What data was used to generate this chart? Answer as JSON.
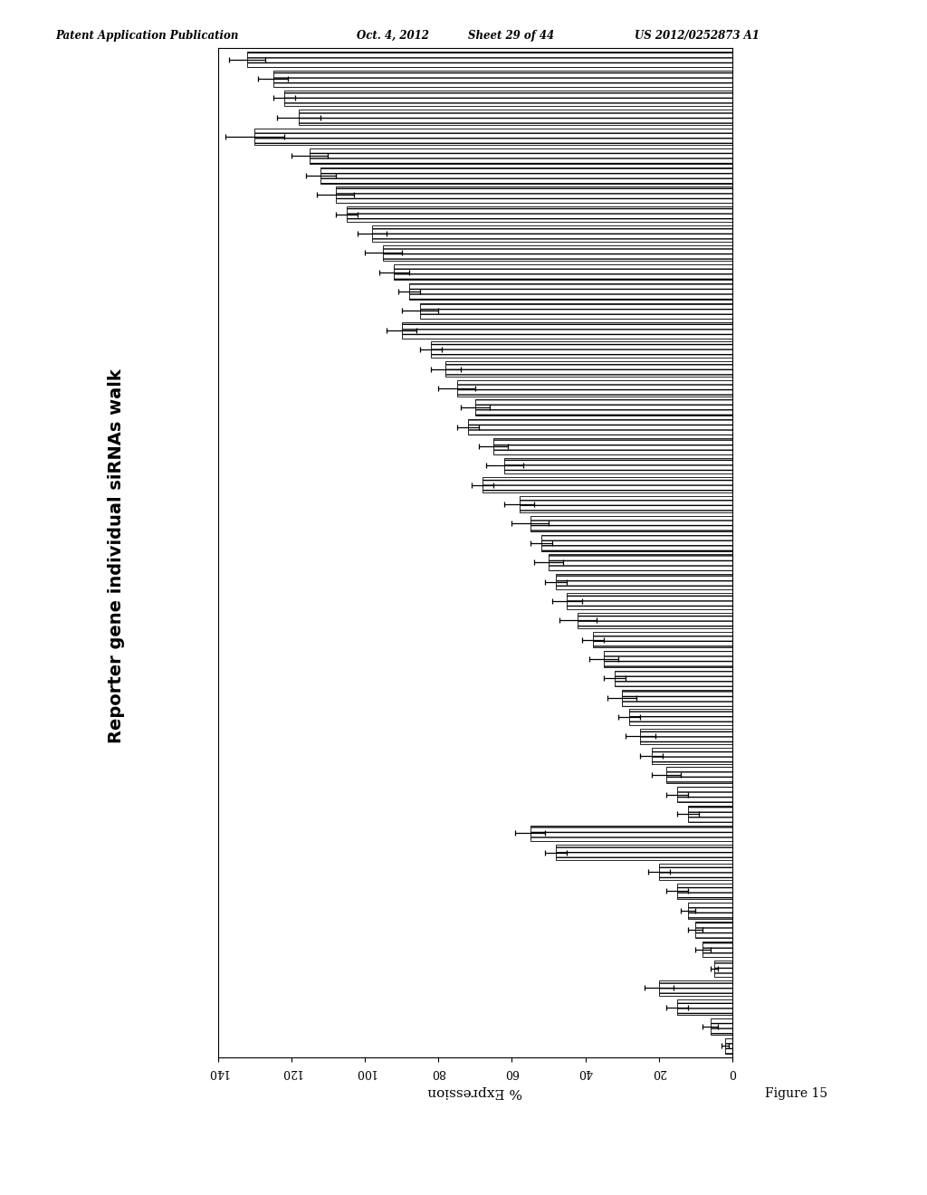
{
  "title": "Reporter gene individual siRNAs walk",
  "xlabel": "% Expression",
  "xlim_min": 0,
  "xlim_max": 140,
  "xticks": [
    0,
    20,
    40,
    60,
    80,
    100,
    120,
    140
  ],
  "bar_facecolor": "#ffffff",
  "bar_edgecolor": "#000000",
  "bar_hatch": "----",
  "error_color": "#000000",
  "figure_label": "Figure 15",
  "header_left": "Patent Application Publication",
  "header_date": "Oct. 4, 2012",
  "header_sheet": "Sheet 29 of 44",
  "header_right": "US 2012/0252873 A1",
  "bar_values": [
    132,
    125,
    122,
    118,
    130,
    115,
    112,
    108,
    105,
    98,
    95,
    92,
    88,
    85,
    90,
    82,
    78,
    75,
    70,
    72,
    65,
    62,
    68,
    58,
    55,
    52,
    50,
    48,
    45,
    42,
    38,
    35,
    32,
    30,
    28,
    25,
    22,
    18,
    15,
    12,
    55,
    48,
    20,
    15,
    12,
    10,
    8,
    5,
    20,
    15,
    6,
    2
  ],
  "bar_errors": [
    5,
    4,
    3,
    6,
    8,
    5,
    4,
    5,
    3,
    4,
    5,
    4,
    3,
    5,
    4,
    3,
    4,
    5,
    4,
    3,
    4,
    5,
    3,
    4,
    5,
    3,
    4,
    3,
    4,
    5,
    3,
    4,
    3,
    4,
    3,
    4,
    3,
    4,
    3,
    3,
    4,
    3,
    3,
    3,
    2,
    2,
    2,
    1,
    4,
    3,
    2,
    1
  ]
}
